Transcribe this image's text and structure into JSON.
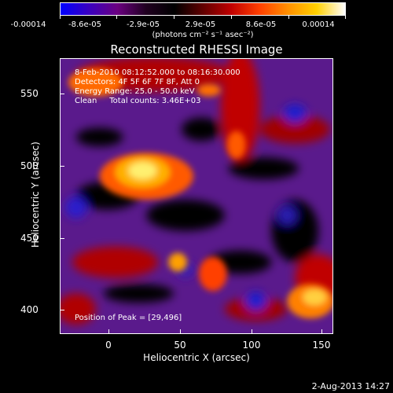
{
  "colorbar": {
    "tick_labels": [
      "-0.00014",
      "-8.6e-05",
      "-2.9e-05",
      "2.9e-05",
      "8.6e-05",
      "0.00014"
    ],
    "units": "(photons cm⁻² s⁻¹ asec⁻²)",
    "colors": [
      "#0000ff",
      "#3a00c0",
      "#6a0080",
      "#200020",
      "#000000",
      "#600000",
      "#c00000",
      "#ff4000",
      "#ff9000",
      "#ffd000",
      "#ffffff"
    ]
  },
  "title": "Reconstructed RHESSI Image",
  "info": {
    "line1": "8-Feb-2010 08:12:52.000 to 08:16:30.000",
    "line2": "Detectors: 4F 5F 6F 7F 8F, Att 0",
    "line3": "Energy Range: 25.0 - 50.0 keV",
    "line4": "Clean     Total counts: 3.46E+03"
  },
  "peak_text": "Position of Peak = [29,496]",
  "xaxis": {
    "label": "Heliocentric X (arcsec)",
    "ticks": [
      "0",
      "50",
      "100",
      "150"
    ]
  },
  "yaxis": {
    "label": "Heliocentric Y (arcsec)",
    "ticks": [
      "550",
      "500",
      "450",
      "400"
    ]
  },
  "timestamp": "2-Aug-2013 14:27"
}
